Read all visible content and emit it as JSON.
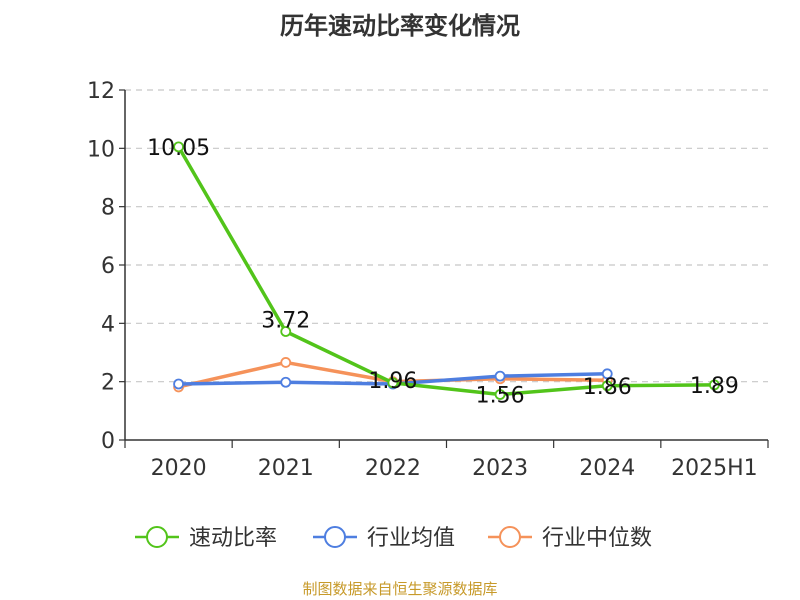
{
  "chart_data": {
    "type": "line",
    "title": "历年速动比率变化情况",
    "categories": [
      "2020",
      "2021",
      "2022",
      "2023",
      "2024",
      "2025H1"
    ],
    "ylim": [
      0,
      12
    ],
    "yticks": [
      0,
      2,
      4,
      6,
      8,
      10,
      12
    ],
    "grid": true,
    "legend_position": "bottom",
    "series": [
      {
        "name": "速动比率",
        "color": "#52c41a",
        "values": [
          10.05,
          3.72,
          1.96,
          1.56,
          1.86,
          1.89
        ],
        "labels": [
          "10.05",
          "3.72",
          "1.96",
          "1.56",
          "1.86",
          "1.89"
        ]
      },
      {
        "name": "行业均值",
        "color": "#4e7ee0",
        "values": [
          1.92,
          1.98,
          1.92,
          2.19,
          2.27,
          null
        ]
      },
      {
        "name": "行业中位数",
        "color": "#f5925a",
        "values": [
          1.82,
          2.66,
          2.0,
          2.1,
          2.05,
          null
        ]
      }
    ]
  },
  "footer": {
    "source": "制图数据来自恒生聚源数据库"
  }
}
